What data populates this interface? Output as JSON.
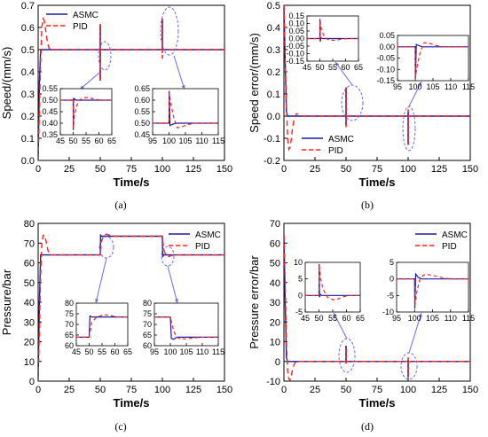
{
  "colors": {
    "asmc": "#1a1aa0",
    "pid": "#ff2020",
    "zoom": "#6a6ae0",
    "frame": "#000000"
  },
  "chart_data": [
    {
      "type": "line",
      "id": "a",
      "caption": "(a)",
      "xlabel": "Time/s",
      "ylabel": "Speed/(mm/s)",
      "xlim": [
        0,
        150
      ],
      "ylim": [
        0,
        0.7
      ],
      "xticks": [
        "0",
        "25",
        "50",
        "75",
        "100",
        "125",
        "150"
      ],
      "yticks": [
        "0.0",
        "0.1",
        "0.2",
        "0.3",
        "0.4",
        "0.5",
        "0.6",
        "0.7"
      ],
      "legend": {
        "position": "top-left",
        "entries": [
          "ASMC",
          "PID"
        ]
      },
      "series": [
        {
          "name": "ASMC",
          "style": "solid",
          "x": [
            0,
            1,
            2,
            150
          ],
          "y": [
            0,
            0.35,
            0.5,
            0.5
          ],
          "spikes": [
            {
              "x": 50,
              "lo": 0.36,
              "hi": 0.61
            },
            {
              "x": 100,
              "lo": 0.5,
              "hi": 0.64
            }
          ]
        },
        {
          "name": "PID",
          "style": "dashed",
          "x": [
            0,
            1,
            2,
            3,
            4,
            5,
            6,
            7,
            8,
            9,
            10,
            12,
            15,
            150
          ],
          "y": [
            0,
            0.22,
            0.45,
            0.6,
            0.64,
            0.63,
            0.59,
            0.55,
            0.52,
            0.505,
            0.5,
            0.5,
            0.5,
            0.5
          ],
          "spikes": [
            {
              "x": 50,
              "lo": 0.36,
              "hi": 0.62
            },
            {
              "x": 100,
              "lo": 0.46,
              "hi": 0.64
            }
          ]
        }
      ],
      "insets": [
        {
          "xlim": [
            45,
            65
          ],
          "ylim": [
            0.35,
            0.55
          ],
          "xticks": [
            "45",
            "50",
            "55",
            "60",
            "65"
          ],
          "yticks": [
            "0.35",
            "0.40",
            "0.45",
            "0.50",
            "0.55"
          ],
          "series": [
            {
              "name": "ASMC",
              "x": [
                45,
                50,
                50.05,
                50.15,
                50.3,
                50.6,
                51,
                65
              ],
              "y": [
                0.5,
                0.5,
                0.37,
                0.51,
                0.5,
                0.505,
                0.5,
                0.5
              ]
            },
            {
              "name": "PID",
              "x": [
                45,
                50,
                50.1,
                50.5,
                51.5,
                53,
                55,
                57,
                59,
                61,
                63,
                65
              ],
              "y": [
                0.5,
                0.5,
                0.38,
                0.44,
                0.48,
                0.505,
                0.512,
                0.508,
                0.503,
                0.5,
                0.5,
                0.5
              ]
            }
          ]
        },
        {
          "xlim": [
            95,
            115
          ],
          "ylim": [
            0.45,
            0.65
          ],
          "xticks": [
            "95",
            "100",
            "105",
            "110",
            "115"
          ],
          "yticks": [
            "0.45",
            "0.50",
            "0.55",
            "0.60",
            "0.65"
          ],
          "series": [
            {
              "name": "ASMC",
              "x": [
                95,
                100,
                100.05,
                100.3,
                101,
                102,
                103,
                115
              ],
              "y": [
                0.5,
                0.5,
                0.64,
                0.49,
                0.495,
                0.5,
                0.5,
                0.5
              ]
            },
            {
              "name": "PID",
              "x": [
                95,
                100,
                100.1,
                100.6,
                101.5,
                102.5,
                104,
                106,
                108,
                110,
                115
              ],
              "y": [
                0.5,
                0.5,
                0.63,
                0.58,
                0.52,
                0.48,
                0.485,
                0.495,
                0.5,
                0.5,
                0.5
              ]
            }
          ]
        }
      ]
    },
    {
      "type": "line",
      "id": "b",
      "caption": "(b)",
      "xlabel": "Time/s",
      "ylabel": "Speed error/(mm/s)",
      "xlim": [
        0,
        150
      ],
      "ylim": [
        -0.2,
        0.5
      ],
      "xticks": [
        "0",
        "25",
        "50",
        "75",
        "100",
        "125",
        "150"
      ],
      "yticks": [
        "-0.2",
        "-0.1",
        "0.0",
        "0.1",
        "0.2",
        "0.3",
        "0.4",
        "0.5"
      ],
      "legend": {
        "position": "bottom-right",
        "entries": [
          "ASMC",
          "PID"
        ]
      },
      "series": [
        {
          "name": "ASMC",
          "style": "solid",
          "x": [
            0,
            1,
            2,
            3,
            150
          ],
          "y": [
            0.5,
            0.25,
            0.02,
            0,
            0
          ],
          "spikes": [
            {
              "x": 50,
              "lo": -0.04,
              "hi": 0.13
            },
            {
              "x": 100,
              "lo": -0.13,
              "hi": 0.02
            }
          ]
        },
        {
          "name": "PID",
          "style": "dashed",
          "x": [
            0,
            1,
            2,
            3,
            4,
            5,
            6,
            7,
            8,
            9,
            10,
            12,
            15,
            150
          ],
          "y": [
            0.5,
            0.25,
            0.05,
            -0.1,
            -0.15,
            -0.14,
            -0.1,
            -0.05,
            -0.02,
            -0.005,
            0.01,
            0.01,
            0,
            0
          ],
          "spikes": [
            {
              "x": 50,
              "lo": -0.05,
              "hi": 0.13
            },
            {
              "x": 100,
              "lo": -0.13,
              "hi": 0.04
            }
          ]
        }
      ],
      "insets": [
        {
          "xlim": [
            45,
            65
          ],
          "ylim": [
            -0.15,
            0.15
          ],
          "xticks": [
            "45",
            "50",
            "55",
            "60",
            "65"
          ],
          "yticks": [
            "-0.15",
            "-0.10",
            "-0.05",
            "0.00",
            "0.05",
            "0.10",
            "0.15"
          ],
          "series": [
            {
              "name": "ASMC",
              "x": [
                45,
                50,
                50.05,
                50.15,
                50.4,
                51,
                65
              ],
              "y": [
                0,
                0,
                0.13,
                -0.02,
                0.005,
                0,
                0
              ]
            },
            {
              "name": "PID",
              "x": [
                45,
                50,
                50.1,
                50.6,
                51.5,
                53,
                55,
                57,
                59,
                61,
                65
              ],
              "y": [
                0,
                0,
                0.12,
                0.06,
                0.02,
                -0.005,
                -0.012,
                -0.008,
                -0.003,
                0,
                0
              ]
            }
          ]
        },
        {
          "xlim": [
            95,
            115
          ],
          "ylim": [
            -0.15,
            0.05
          ],
          "xticks": [
            "95",
            "100",
            "105",
            "110",
            "115"
          ],
          "yticks": [
            "-0.15",
            "-0.10",
            "-0.05",
            "0.00",
            "0.05"
          ],
          "series": [
            {
              "name": "ASMC",
              "x": [
                95,
                100,
                100.05,
                100.3,
                101,
                102,
                115
              ],
              "y": [
                0,
                0,
                -0.14,
                0.01,
                0.005,
                0,
                0
              ]
            },
            {
              "name": "PID",
              "x": [
                95,
                100,
                100.1,
                100.6,
                101.5,
                102.5,
                104,
                106,
                108,
                115
              ],
              "y": [
                0,
                0,
                -0.13,
                -0.08,
                -0.02,
                0.018,
                0.015,
                0.005,
                0,
                0
              ]
            }
          ]
        }
      ]
    },
    {
      "type": "line",
      "id": "c",
      "caption": "(c)",
      "xlabel": "Time/s",
      "ylabel": "Pressure/bar",
      "xlim": [
        0,
        150
      ],
      "ylim": [
        0,
        80
      ],
      "xticks": [
        "0",
        "25",
        "50",
        "75",
        "100",
        "125",
        "150"
      ],
      "yticks": [
        "0",
        "10",
        "20",
        "30",
        "40",
        "50",
        "60",
        "70",
        "80"
      ],
      "legend": {
        "position": "top-right",
        "entries": [
          "ASMC",
          "PID"
        ]
      },
      "series": [
        {
          "name": "ASMC",
          "style": "solid",
          "x": [
            0,
            1,
            2,
            50,
            50.3,
            51,
            100,
            100.3,
            101,
            150
          ],
          "y": [
            0,
            40,
            64,
            64,
            74,
            73.5,
            73.5,
            63,
            64,
            64
          ]
        },
        {
          "name": "PID",
          "style": "dashed",
          "x": [
            0,
            1,
            2,
            3,
            4,
            5,
            6,
            7,
            8,
            9,
            10,
            12,
            15,
            50,
            51,
            53,
            55,
            58,
            62,
            100,
            101,
            103,
            105,
            108,
            112,
            150
          ],
          "y": [
            0,
            25,
            55,
            70,
            74,
            74,
            72,
            69,
            66,
            64.5,
            64,
            64,
            64,
            64,
            71,
            74,
            74.5,
            74,
            73.5,
            73.5,
            67,
            63.5,
            63.2,
            63.8,
            64,
            64
          ]
        }
      ],
      "insets": [
        {
          "xlim": [
            45,
            65
          ],
          "ylim": [
            60,
            80
          ],
          "xticks": [
            "45",
            "50",
            "55",
            "60",
            "65"
          ],
          "yticks": [
            "60",
            "65",
            "70",
            "75",
            "80"
          ],
          "series": [
            {
              "name": "ASMC",
              "x": [
                45,
                50,
                50.3,
                51,
                65
              ],
              "y": [
                64,
                64,
                74,
                73.5,
                73.5
              ]
            },
            {
              "name": "PID",
              "x": [
                45,
                50,
                51,
                53,
                55,
                57,
                59,
                61,
                65
              ],
              "y": [
                64,
                64,
                71,
                73.5,
                74.3,
                74.5,
                74,
                73.6,
                73.5
              ]
            }
          ]
        },
        {
          "xlim": [
            95,
            115
          ],
          "ylim": [
            60,
            80
          ],
          "xticks": [
            "95",
            "100",
            "105",
            "110",
            "115"
          ],
          "yticks": [
            "60",
            "65",
            "70",
            "75",
            "80"
          ],
          "series": [
            {
              "name": "ASMC",
              "x": [
                95,
                100,
                100.3,
                101,
                102,
                115
              ],
              "y": [
                73.5,
                73.5,
                63.5,
                63,
                64,
                64
              ]
            },
            {
              "name": "PID",
              "x": [
                95,
                100,
                101,
                102,
                103,
                105,
                107,
                109,
                112,
                115
              ],
              "y": [
                73.5,
                73.5,
                67,
                64,
                63.3,
                63.2,
                63.6,
                63.9,
                64,
                64
              ]
            }
          ]
        }
      ]
    },
    {
      "type": "line",
      "id": "d",
      "caption": "(d)",
      "xlabel": "Time/s",
      "ylabel": "Pressure error/bar",
      "xlim": [
        0,
        150
      ],
      "ylim": [
        -10,
        70
      ],
      "xticks": [
        "0",
        "25",
        "50",
        "75",
        "100",
        "125",
        "150"
      ],
      "yticks": [
        "-10",
        "0",
        "10",
        "20",
        "30",
        "40",
        "50",
        "60",
        "70"
      ],
      "legend": {
        "position": "top-right",
        "entries": [
          "ASMC",
          "PID"
        ]
      },
      "series": [
        {
          "name": "ASMC",
          "style": "solid",
          "x": [
            0,
            1,
            2,
            3,
            150
          ],
          "y": [
            64,
            30,
            2,
            0,
            0
          ],
          "spikes": [
            {
              "x": 50,
              "lo": -1,
              "hi": 8
            },
            {
              "x": 100,
              "lo": -8,
              "hi": 1
            }
          ]
        },
        {
          "name": "PID",
          "style": "dashed",
          "x": [
            0,
            1,
            2,
            3,
            4,
            5,
            6,
            7,
            8,
            9,
            10,
            12,
            15,
            150
          ],
          "y": [
            64,
            40,
            10,
            -5,
            -9,
            -9.5,
            -7,
            -4,
            -2,
            -0.5,
            0,
            0,
            0,
            0
          ],
          "spikes": [
            {
              "x": 50,
              "lo": -1,
              "hi": 7
            },
            {
              "x": 100,
              "lo": -7,
              "hi": 2
            }
          ]
        }
      ],
      "insets": [
        {
          "xlim": [
            45,
            65
          ],
          "ylim": [
            -5,
            10
          ],
          "xticks": [
            "45",
            "50",
            "55",
            "60",
            "65"
          ],
          "yticks": [
            "-5",
            "0",
            "5",
            "10"
          ],
          "series": [
            {
              "name": "ASMC",
              "x": [
                45,
                50,
                50.05,
                50.2,
                50.5,
                51,
                65
              ],
              "y": [
                0,
                0,
                9.5,
                -0.5,
                0.3,
                0,
                0
              ]
            },
            {
              "name": "PID",
              "x": [
                45,
                50,
                50.1,
                50.6,
                51.5,
                53,
                55,
                57,
                59,
                61,
                65
              ],
              "y": [
                0,
                0,
                9,
                5,
                2,
                -0.5,
                -1.3,
                -1,
                -0.4,
                0,
                0
              ]
            }
          ]
        },
        {
          "xlim": [
            95,
            115
          ],
          "ylim": [
            -10,
            5
          ],
          "xticks": [
            "95",
            "100",
            "105",
            "110",
            "115"
          ],
          "yticks": [
            "-10",
            "-5",
            "0",
            "5"
          ],
          "series": [
            {
              "name": "ASMC",
              "x": [
                95,
                100,
                100.05,
                100.3,
                101,
                102,
                115
              ],
              "y": [
                0,
                0,
                -9,
                1.5,
                0.5,
                0,
                0
              ]
            },
            {
              "name": "PID",
              "x": [
                95,
                100,
                100.1,
                100.6,
                101.5,
                102.5,
                104,
                106,
                108,
                110,
                115
              ],
              "y": [
                0,
                0,
                -8,
                -4,
                0,
                1.2,
                1.3,
                0.8,
                0.3,
                0,
                0
              ]
            }
          ]
        }
      ]
    }
  ]
}
